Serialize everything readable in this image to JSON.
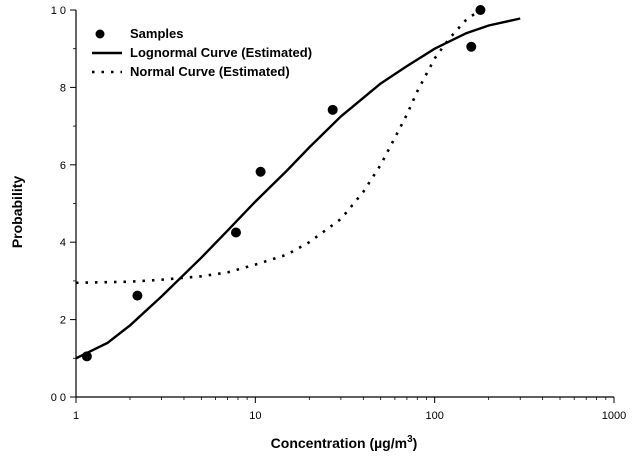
{
  "chart_data": {
    "type": "scatter",
    "title": "",
    "xlabel": "Concentration (µg/m",
    "xlabel_superscript": "3",
    "xlabel_suffix": ")",
    "ylabel": "Probability",
    "x_scale": "log",
    "xlim": [
      1,
      1000
    ],
    "ylim": [
      0,
      10
    ],
    "x_tick_labels": [
      "1",
      "10",
      "100",
      "1000"
    ],
    "x_ticks": [
      1,
      10,
      100,
      1000
    ],
    "y_tick_labels": [
      "0 0",
      "2",
      "4",
      "6",
      "8",
      "1 0"
    ],
    "y_ticks": [
      0,
      2,
      4,
      6,
      8,
      10
    ],
    "grid": false,
    "legend_position": "top-left",
    "series": [
      {
        "name": "Samples",
        "kind": "points",
        "points": [
          {
            "x": 1.15,
            "y": 1.05
          },
          {
            "x": 2.2,
            "y": 2.62
          },
          {
            "x": 7.8,
            "y": 4.25
          },
          {
            "x": 10.7,
            "y": 5.82
          },
          {
            "x": 27,
            "y": 7.42
          },
          {
            "x": 160,
            "y": 9.05
          },
          {
            "x": 180,
            "y": 10.0
          }
        ]
      },
      {
        "name": "Lognormal Curve (Estimated)",
        "kind": "solid-line",
        "points": [
          {
            "x": 1.0,
            "y": 1.0
          },
          {
            "x": 1.5,
            "y": 1.4
          },
          {
            "x": 2.0,
            "y": 1.85
          },
          {
            "x": 3.0,
            "y": 2.6
          },
          {
            "x": 5.0,
            "y": 3.6
          },
          {
            "x": 7.0,
            "y": 4.3
          },
          {
            "x": 10.0,
            "y": 5.05
          },
          {
            "x": 15.0,
            "y": 5.85
          },
          {
            "x": 20.0,
            "y": 6.45
          },
          {
            "x": 30.0,
            "y": 7.25
          },
          {
            "x": 50.0,
            "y": 8.1
          },
          {
            "x": 70.0,
            "y": 8.55
          },
          {
            "x": 100.0,
            "y": 9.0
          },
          {
            "x": 150.0,
            "y": 9.4
          },
          {
            "x": 200.0,
            "y": 9.6
          },
          {
            "x": 300.0,
            "y": 9.78
          }
        ]
      },
      {
        "name": "Normal Curve (Estimated)",
        "kind": "dotted-line",
        "points": [
          {
            "x": 1.0,
            "y": 2.95
          },
          {
            "x": 2.0,
            "y": 2.98
          },
          {
            "x": 3.0,
            "y": 3.03
          },
          {
            "x": 5.0,
            "y": 3.12
          },
          {
            "x": 7.0,
            "y": 3.22
          },
          {
            "x": 10.0,
            "y": 3.42
          },
          {
            "x": 15.0,
            "y": 3.68
          },
          {
            "x": 20.0,
            "y": 4.0
          },
          {
            "x": 30.0,
            "y": 4.6
          },
          {
            "x": 40.0,
            "y": 5.3
          },
          {
            "x": 50.0,
            "y": 6.0
          },
          {
            "x": 60.0,
            "y": 6.7
          },
          {
            "x": 70.0,
            "y": 7.3
          },
          {
            "x": 80.0,
            "y": 7.9
          },
          {
            "x": 100.0,
            "y": 8.75
          },
          {
            "x": 120.0,
            "y": 9.25
          },
          {
            "x": 150.0,
            "y": 9.75
          },
          {
            "x": 180.0,
            "y": 10.0
          }
        ]
      }
    ]
  }
}
